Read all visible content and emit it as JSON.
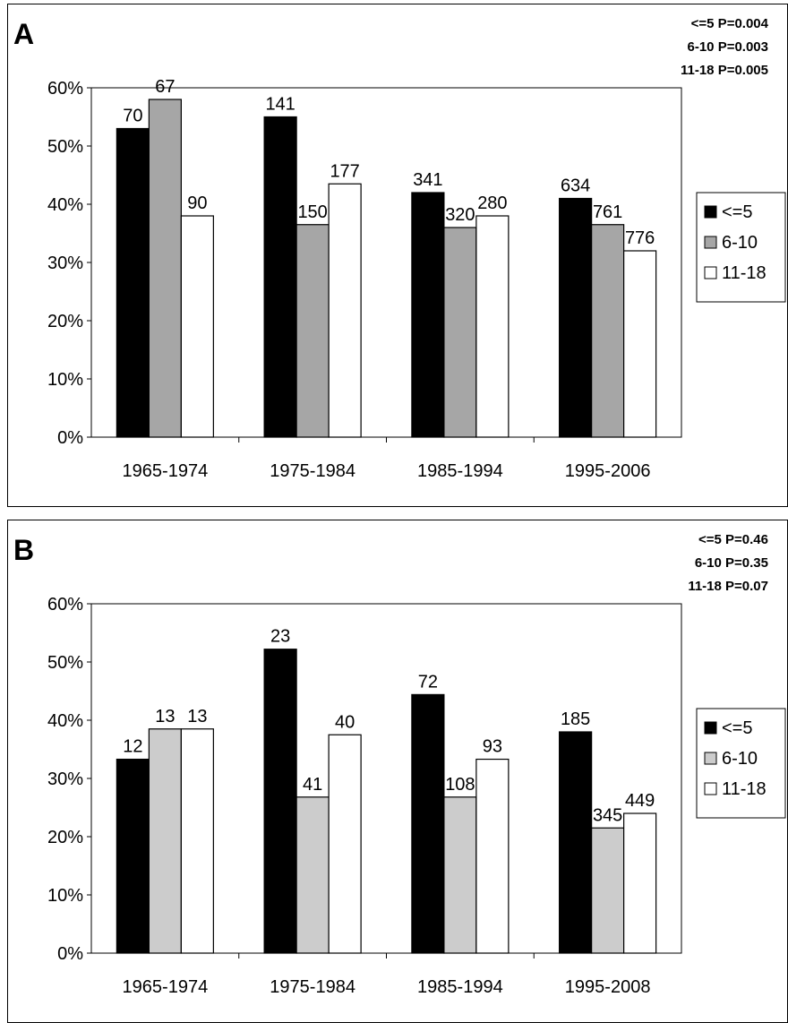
{
  "chart_data": [
    {
      "type": "bar",
      "panel_label": "A",
      "categories": [
        "1965-1974",
        "1975-1984",
        "1985-1994",
        "1995-2006"
      ],
      "series": [
        {
          "name": "<=5",
          "values": [
            53,
            55,
            42,
            41
          ],
          "labels": [
            "70",
            "141",
            "341",
            "634"
          ],
          "color": "#000000"
        },
        {
          "name": "6-10",
          "values": [
            58,
            36.5,
            36,
            36.5
          ],
          "labels": [
            "67",
            "150",
            "320",
            "761"
          ],
          "color": "#a6a6a6"
        },
        {
          "name": "11-18",
          "values": [
            38,
            43.5,
            38,
            32
          ],
          "labels": [
            "90",
            "177",
            "280",
            "776"
          ],
          "color": "#ffffff"
        }
      ],
      "yticks": [
        "0%",
        "10%",
        "20%",
        "30%",
        "40%",
        "50%",
        "60%"
      ],
      "ylim": [
        0,
        60
      ],
      "pvalues": [
        "<=5 P=0.004",
        "6-10 P=0.003",
        "11-18 P=0.005"
      ],
      "legend_position": "right"
    },
    {
      "type": "bar",
      "panel_label": "B",
      "categories": [
        "1965-1974",
        "1975-1984",
        "1985-1994",
        "1995-2008"
      ],
      "series": [
        {
          "name": "<=5",
          "values": [
            33.3,
            52.2,
            44.4,
            38
          ],
          "labels": [
            "12",
            "23",
            "72",
            "185"
          ],
          "color": "#000000"
        },
        {
          "name": "6-10",
          "values": [
            38.5,
            26.8,
            26.8,
            21.5
          ],
          "labels": [
            "13",
            "41",
            "108",
            "345"
          ],
          "color": "#cccccc"
        },
        {
          "name": "11-18",
          "values": [
            38.5,
            37.5,
            33.3,
            24
          ],
          "labels": [
            "13",
            "40",
            "93",
            "449"
          ],
          "color": "#ffffff"
        }
      ],
      "yticks": [
        "0%",
        "10%",
        "20%",
        "30%",
        "40%",
        "50%",
        "60%"
      ],
      "ylim": [
        0,
        60
      ],
      "pvalues": [
        "<=5 P=0.46",
        "6-10 P=0.35",
        "11-18 P=0.07"
      ],
      "legend_position": "right"
    }
  ]
}
